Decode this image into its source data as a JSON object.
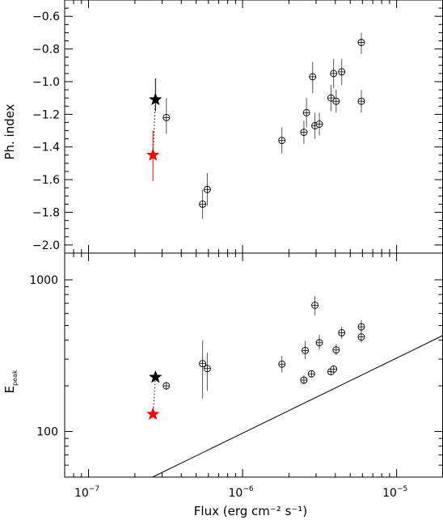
{
  "chart_data": [
    {
      "type": "scatter",
      "panel": "top",
      "xlabel": "",
      "ylabel": "Ph. index",
      "xscale": "log",
      "xlim": [
        7e-08,
        2e-05
      ],
      "ylim": [
        -2.05,
        -0.5
      ],
      "yticks": [
        -2.0,
        -1.8,
        -1.6,
        -1.4,
        -1.2,
        -1.0,
        -0.8,
        -0.6
      ],
      "ytick_labels": [
        "−2.0",
        "−1.8",
        "−1.6",
        "−1.4",
        "−1.2",
        "−1.0",
        "−0.8",
        "−0.6"
      ],
      "series": [
        {
          "marker": "circle",
          "color": "#000000",
          "points": [
            {
              "x": 3.2e-07,
              "y": -1.22,
              "ylo": -1.32,
              "yhi": -1.1
            },
            {
              "x": 5.5e-07,
              "y": -1.75,
              "ylo": -1.84,
              "yhi": -1.66
            },
            {
              "x": 5.9e-07,
              "y": -1.66,
              "ylo": -1.76,
              "yhi": -1.56
            },
            {
              "x": 1.8e-06,
              "y": -1.36,
              "ylo": -1.44,
              "yhi": -1.28
            },
            {
              "x": 2.5e-06,
              "y": -1.31,
              "ylo": -1.38,
              "yhi": -1.24
            },
            {
              "x": 2.6e-06,
              "y": -1.19,
              "ylo": -1.28,
              "yhi": -1.1
            },
            {
              "x": 2.85e-06,
              "y": -0.97,
              "ylo": -1.07,
              "yhi": -0.88
            },
            {
              "x": 2.95e-06,
              "y": -1.27,
              "ylo": -1.35,
              "yhi": -1.19
            },
            {
              "x": 3.15e-06,
              "y": -1.26,
              "ylo": -1.33,
              "yhi": -1.19
            },
            {
              "x": 3.75e-06,
              "y": -1.1,
              "ylo": -1.18,
              "yhi": -1.02
            },
            {
              "x": 3.9e-06,
              "y": -0.95,
              "ylo": -1.04,
              "yhi": -0.86
            },
            {
              "x": 4.05e-06,
              "y": -1.12,
              "ylo": -1.19,
              "yhi": -1.05
            },
            {
              "x": 4.4e-06,
              "y": -0.94,
              "ylo": -1.02,
              "yhi": -0.86
            },
            {
              "x": 5.9e-06,
              "y": -0.76,
              "ylo": -0.83,
              "yhi": -0.7
            },
            {
              "x": 5.9e-06,
              "y": -1.12,
              "ylo": -1.19,
              "yhi": -1.05
            }
          ]
        },
        {
          "marker": "star",
          "color": "#000000",
          "points": [
            {
              "x": 2.72e-07,
              "y": -1.11,
              "ylo": -1.18,
              "yhi": -0.98
            }
          ]
        },
        {
          "marker": "star",
          "color": "#ff0000",
          "points": [
            {
              "x": 2.62e-07,
              "y": -1.45,
              "ylo": -1.61,
              "yhi": -1.3
            }
          ]
        }
      ],
      "connector": {
        "style": "dotted",
        "from": [
          2.62e-07,
          -1.45
        ],
        "to": [
          2.72e-07,
          -1.11
        ]
      }
    },
    {
      "type": "scatter",
      "panel": "bottom",
      "xlabel": "Flux (erg cm⁻² s⁻¹)",
      "ylabel_main": "E",
      "ylabel_sub": "peak",
      "xscale": "log",
      "yscale": "log",
      "xlim": [
        7e-08,
        2e-05
      ],
      "ylim": [
        50,
        1500
      ],
      "yticks": [
        100,
        1000
      ],
      "ytick_labels": [
        "100",
        "1000"
      ],
      "xticks": [
        1e-07,
        1e-06,
        1e-05
      ],
      "xtick_labels": [
        {
          "base": "10",
          "exp": "−7"
        },
        {
          "base": "10",
          "exp": "−6"
        },
        {
          "base": "10",
          "exp": "−5"
        }
      ],
      "series": [
        {
          "marker": "circle",
          "color": "#000000",
          "points": [
            {
              "x": 3.2e-07,
              "y": 200,
              "ylo": 188,
              "yhi": 213
            },
            {
              "x": 5.5e-07,
              "y": 280,
              "ylo": 165,
              "yhi": 400
            },
            {
              "x": 5.9e-07,
              "y": 260,
              "ylo": 185,
              "yhi": 330
            },
            {
              "x": 1.8e-06,
              "y": 278,
              "ylo": 245,
              "yhi": 315
            },
            {
              "x": 2.5e-06,
              "y": 218,
              "ylo": 205,
              "yhi": 235
            },
            {
              "x": 2.55e-06,
              "y": 342,
              "ylo": 300,
              "yhi": 395
            },
            {
              "x": 2.8e-06,
              "y": 240,
              "ylo": 228,
              "yhi": 253
            },
            {
              "x": 2.95e-06,
              "y": 680,
              "ylo": 585,
              "yhi": 780
            },
            {
              "x": 3.15e-06,
              "y": 385,
              "ylo": 345,
              "yhi": 435
            },
            {
              "x": 3.75e-06,
              "y": 248,
              "ylo": 238,
              "yhi": 262
            },
            {
              "x": 3.9e-06,
              "y": 258,
              "ylo": 245,
              "yhi": 272
            },
            {
              "x": 4.05e-06,
              "y": 345,
              "ylo": 318,
              "yhi": 375
            },
            {
              "x": 4.4e-06,
              "y": 448,
              "ylo": 408,
              "yhi": 492
            },
            {
              "x": 5.9e-06,
              "y": 490,
              "ylo": 445,
              "yhi": 540
            },
            {
              "x": 5.9e-06,
              "y": 420,
              "ylo": 385,
              "yhi": 460
            }
          ]
        },
        {
          "marker": "star",
          "color": "#000000",
          "points": [
            {
              "x": 2.72e-07,
              "y": 228,
              "ylo": 228,
              "yhi": 228
            }
          ]
        },
        {
          "marker": "star",
          "color": "#ff0000",
          "points": [
            {
              "x": 2.62e-07,
              "y": 130,
              "ylo": 130,
              "yhi": 130
            }
          ]
        }
      ],
      "connector": {
        "style": "dotted",
        "from": [
          2.62e-07,
          130
        ],
        "to": [
          2.72e-07,
          228
        ]
      },
      "reference_line": {
        "style": "solid",
        "from": [
          2.6e-07,
          50
        ],
        "to": [
          2e-05,
          430
        ]
      }
    }
  ]
}
